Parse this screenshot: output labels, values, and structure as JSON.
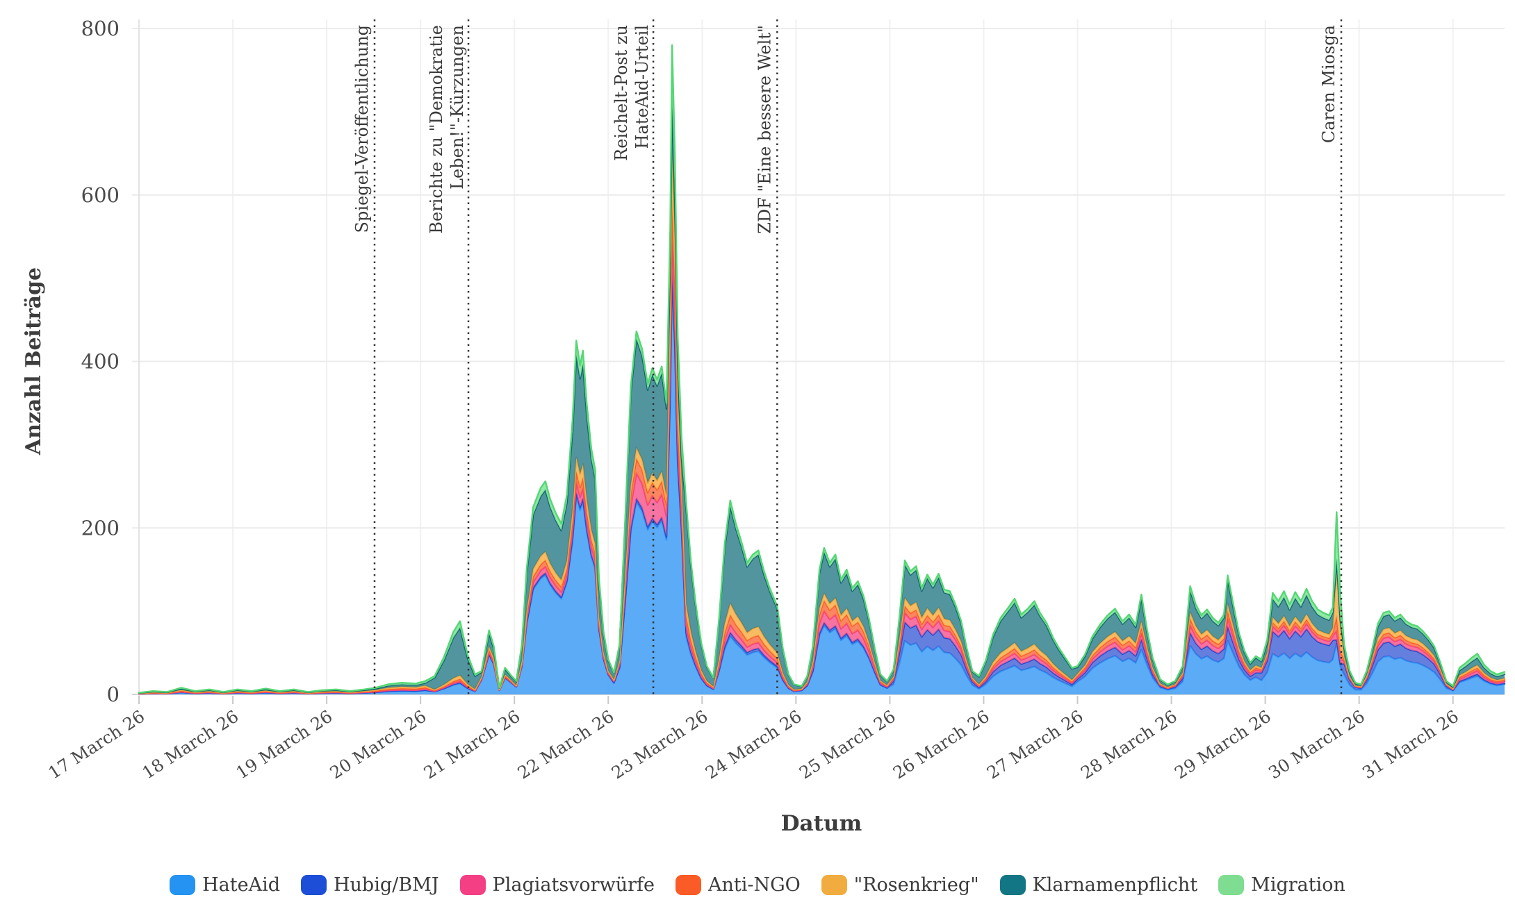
{
  "page": {
    "background": "#ffffff"
  },
  "chart_data": {
    "type": "area",
    "stacked": true,
    "title": "",
    "xlabel": "Datum",
    "ylabel": "Anzahl Beiträge",
    "ylim": [
      0,
      800
    ],
    "yticks": [
      0,
      200,
      400,
      600,
      800
    ],
    "grid": "horizontal light + faint vertical day lines",
    "legend_position": "bottom-center",
    "x_range_days": [
      0,
      14.55
    ],
    "x_tick_labels": [
      "17 March 26",
      "18 March 26",
      "19 March 26",
      "20 March 26",
      "21 March 26",
      "22 March 26",
      "23 March 26",
      "24 March 26",
      "25 March 26",
      "26 March 26",
      "27 March 26",
      "28 March 26",
      "29 March 26",
      "30 March 26",
      "31 March 26"
    ],
    "series": [
      {
        "name": "HateAid",
        "legend_color": "#2493F2",
        "stroke": "#3298F5",
        "fill": "rgba(62,156,245,0.85)"
      },
      {
        "name": "Hubig/BMJ",
        "legend_color": "#1D4ED8",
        "stroke": "#2149CE",
        "fill": "rgba(62,95,214,0.80)"
      },
      {
        "name": "Plagiatsvorwürfe",
        "legend_color": "#F43F85",
        "stroke": "#F43F85",
        "fill": "rgba(246,90,145,0.85)"
      },
      {
        "name": "Anti-NGO",
        "legend_color": "#FB5B26",
        "stroke": "#FB5B26",
        "fill": "rgba(252,113,69,0.85)"
      },
      {
        "name": "\"Rosenkrieg\"",
        "legend_color": "#F0AC3F",
        "stroke": "#F3A73A",
        "fill": "rgba(246,180,83,0.90)"
      },
      {
        "name": "Klarnamenpflicht",
        "legend_color": "#137685",
        "stroke": "#10646F",
        "fill": "rgba(44,126,138,0.82)"
      },
      {
        "name": "Migration",
        "legend_color": "#7EDD90",
        "stroke": "#55D774",
        "fill": "rgba(135,231,156,0.90)"
      }
    ],
    "mix_profiles": [
      [
        0.3,
        0.02,
        0.08,
        0.12,
        0.14,
        0.2,
        0.14
      ],
      [
        0.15,
        0.01,
        0.02,
        0.03,
        0.05,
        0.65,
        0.09
      ],
      [
        0.62,
        0.01,
        0.03,
        0.04,
        0.05,
        0.2,
        0.05
      ],
      [
        0.56,
        0.01,
        0.03,
        0.03,
        0.04,
        0.29,
        0.04
      ],
      [
        0.53,
        0.01,
        0.07,
        0.04,
        0.03,
        0.3,
        0.02
      ],
      [
        0.64,
        0.01,
        0.06,
        0.05,
        0.08,
        0.08,
        0.08
      ],
      [
        0.3,
        0.02,
        0.04,
        0.05,
        0.06,
        0.5,
        0.03
      ],
      [
        0.47,
        0.02,
        0.08,
        0.07,
        0.05,
        0.28,
        0.03
      ],
      [
        0.4,
        0.14,
        0.07,
        0.05,
        0.06,
        0.25,
        0.03
      ],
      [
        0.3,
        0.08,
        0.05,
        0.05,
        0.06,
        0.42,
        0.04
      ],
      [
        0.45,
        0.1,
        0.06,
        0.06,
        0.06,
        0.23,
        0.04
      ],
      [
        0.45,
        0.12,
        0.07,
        0.06,
        0.06,
        0.2,
        0.04
      ],
      [
        0.4,
        0.22,
        0.05,
        0.04,
        0.05,
        0.18,
        0.06
      ],
      [
        0.28,
        0.02,
        0.05,
        0.08,
        0.27,
        0.04,
        0.26
      ],
      [
        0.46,
        0.17,
        0.06,
        0.05,
        0.06,
        0.16,
        0.04
      ],
      [
        0.45,
        0.05,
        0.08,
        0.07,
        0.07,
        0.18,
        0.1
      ]
    ],
    "x_days": [
      0,
      0.15,
      0.3,
      0.45,
      0.6,
      0.75,
      0.9,
      1.05,
      1.2,
      1.35,
      1.5,
      1.65,
      1.8,
      1.95,
      2.1,
      2.25,
      2.4,
      2.52,
      2.65,
      2.8,
      2.95,
      3.05,
      3.15,
      3.25,
      3.35,
      3.42,
      3.5,
      3.58,
      3.65,
      3.73,
      3.78,
      3.84,
      3.9,
      3.97,
      4.02,
      4.08,
      4.13,
      4.2,
      4.28,
      4.33,
      4.38,
      4.44,
      4.5,
      4.56,
      4.62,
      4.66,
      4.7,
      4.73,
      4.77,
      4.82,
      4.86,
      4.9,
      4.95,
      5.0,
      5.06,
      5.12,
      5.18,
      5.24,
      5.3,
      5.36,
      5.42,
      5.47,
      5.52,
      5.57,
      5.62,
      5.66,
      5.68,
      5.71,
      5.74,
      5.78,
      5.83,
      5.88,
      5.93,
      5.99,
      6.05,
      6.12,
      6.18,
      6.24,
      6.3,
      6.36,
      6.42,
      6.48,
      6.54,
      6.6,
      6.66,
      6.72,
      6.8,
      6.86,
      6.92,
      6.98,
      7.06,
      7.12,
      7.18,
      7.25,
      7.3,
      7.36,
      7.42,
      7.48,
      7.54,
      7.6,
      7.66,
      7.72,
      7.78,
      7.84,
      7.9,
      7.97,
      8.04,
      8.1,
      8.16,
      8.22,
      8.28,
      8.34,
      8.4,
      8.46,
      8.52,
      8.58,
      8.64,
      8.7,
      8.76,
      8.82,
      8.88,
      8.95,
      9.02,
      9.1,
      9.18,
      9.26,
      9.33,
      9.4,
      9.47,
      9.54,
      9.6,
      9.67,
      9.74,
      9.8,
      9.87,
      9.94,
      10.0,
      10.08,
      10.16,
      10.24,
      10.32,
      10.4,
      10.48,
      10.55,
      10.62,
      10.68,
      10.74,
      10.8,
      10.88,
      10.96,
      11.04,
      11.12,
      11.2,
      11.26,
      11.32,
      11.38,
      11.44,
      11.5,
      11.56,
      11.6,
      11.66,
      11.72,
      11.78,
      11.84,
      11.9,
      11.96,
      12.02,
      12.08,
      12.14,
      12.2,
      12.26,
      12.32,
      12.38,
      12.44,
      12.5,
      12.56,
      12.62,
      12.68,
      12.72,
      12.76,
      12.8,
      12.84,
      12.9,
      12.96,
      13.02,
      13.08,
      13.14,
      13.2,
      13.26,
      13.32,
      13.38,
      13.44,
      13.5,
      13.56,
      13.62,
      13.68,
      13.74,
      13.8,
      13.86,
      13.93,
      14.0,
      14.07,
      14.14,
      14.2,
      14.26,
      14.33,
      14.4,
      14.47,
      14.55
    ],
    "totals": [
      2,
      4,
      3,
      8,
      4,
      6,
      3,
      6,
      4,
      7,
      4,
      6,
      3,
      5,
      6,
      4,
      6,
      8,
      12,
      14,
      13,
      16,
      22,
      45,
      75,
      88,
      48,
      24,
      28,
      77,
      58,
      8,
      32,
      22,
      16,
      60,
      150,
      225,
      248,
      256,
      235,
      218,
      205,
      240,
      330,
      425,
      395,
      413,
      350,
      295,
      270,
      140,
      75,
      42,
      26,
      60,
      210,
      370,
      436,
      415,
      373,
      392,
      378,
      394,
      350,
      560,
      780,
      650,
      430,
      310,
      230,
      160,
      110,
      62,
      34,
      20,
      90,
      180,
      233,
      205,
      183,
      158,
      168,
      173,
      148,
      128,
      106,
      55,
      24,
      12,
      10,
      22,
      58,
      150,
      176,
      158,
      168,
      138,
      150,
      128,
      136,
      118,
      90,
      55,
      24,
      16,
      30,
      90,
      161,
      148,
      154,
      128,
      144,
      132,
      145,
      126,
      124,
      108,
      88,
      55,
      28,
      22,
      40,
      72,
      92,
      104,
      115,
      96,
      103,
      112,
      98,
      86,
      68,
      56,
      44,
      32,
      34,
      48,
      70,
      84,
      95,
      103,
      88,
      96,
      84,
      120,
      78,
      44,
      18,
      12,
      16,
      34,
      130,
      108,
      95,
      102,
      92,
      86,
      96,
      143,
      108,
      74,
      52,
      38,
      46,
      42,
      65,
      122,
      112,
      124,
      108,
      123,
      112,
      127,
      112,
      102,
      98,
      95,
      105,
      219,
      120,
      60,
      28,
      14,
      12,
      28,
      55,
      85,
      98,
      100,
      92,
      96,
      88,
      84,
      82,
      76,
      68,
      58,
      40,
      16,
      10,
      32,
      38,
      44,
      49,
      36,
      28,
      24,
      27
    ],
    "mix_index": [
      0,
      0,
      0,
      0,
      0,
      0,
      0,
      0,
      0,
      0,
      0,
      0,
      0,
      0,
      0,
      0,
      0,
      0,
      0,
      0,
      0,
      0,
      1,
      1,
      1,
      1,
      1,
      1,
      2,
      2,
      2,
      2,
      2,
      2,
      3,
      3,
      3,
      3,
      3,
      3,
      3,
      3,
      3,
      3,
      3,
      3,
      3,
      3,
      3,
      3,
      3,
      3,
      3,
      3,
      4,
      4,
      4,
      4,
      4,
      4,
      4,
      4,
      4,
      4,
      4,
      5,
      5,
      5,
      5,
      5,
      6,
      6,
      6,
      6,
      6,
      6,
      6,
      6,
      6,
      6,
      6,
      6,
      6,
      6,
      6,
      6,
      6,
      6,
      6,
      6,
      7,
      7,
      7,
      7,
      7,
      7,
      7,
      7,
      7,
      7,
      7,
      7,
      7,
      7,
      7,
      7,
      8,
      8,
      8,
      8,
      8,
      8,
      8,
      8,
      8,
      8,
      8,
      8,
      8,
      8,
      8,
      9,
      9,
      9,
      9,
      9,
      9,
      9,
      9,
      9,
      9,
      9,
      9,
      9,
      9,
      9,
      10,
      10,
      10,
      10,
      10,
      10,
      10,
      10,
      10,
      10,
      10,
      10,
      10,
      10,
      11,
      11,
      11,
      11,
      11,
      11,
      11,
      11,
      11,
      11,
      11,
      11,
      11,
      11,
      11,
      12,
      12,
      12,
      12,
      12,
      12,
      12,
      12,
      12,
      12,
      12,
      12,
      12,
      12,
      13,
      13,
      12,
      12,
      12,
      14,
      14,
      14,
      14,
      14,
      14,
      14,
      14,
      14,
      14,
      14,
      14,
      14,
      14,
      14,
      14,
      15,
      15,
      15,
      15,
      15,
      15,
      15,
      15,
      15
    ],
    "annotations": [
      {
        "day": 2.51,
        "lines": [
          "Spiegel-Veröffentlichung"
        ]
      },
      {
        "day": 3.51,
        "lines": [
          "Berichte zu \"Demokratie",
          "Leben!\"-Kürzungen"
        ]
      },
      {
        "day": 5.48,
        "lines": [
          "Reichelt-Post zu",
          "HateAid-Urteil"
        ]
      },
      {
        "day": 6.8,
        "lines": [
          "ZDF \"Eine bessere Welt\""
        ]
      },
      {
        "day": 12.81,
        "lines": [
          "Caren Miosga"
        ]
      }
    ],
    "annotation_line_color": "#333333",
    "text_color": "#4a4a4a",
    "title_color": "#3d3d3d"
  }
}
